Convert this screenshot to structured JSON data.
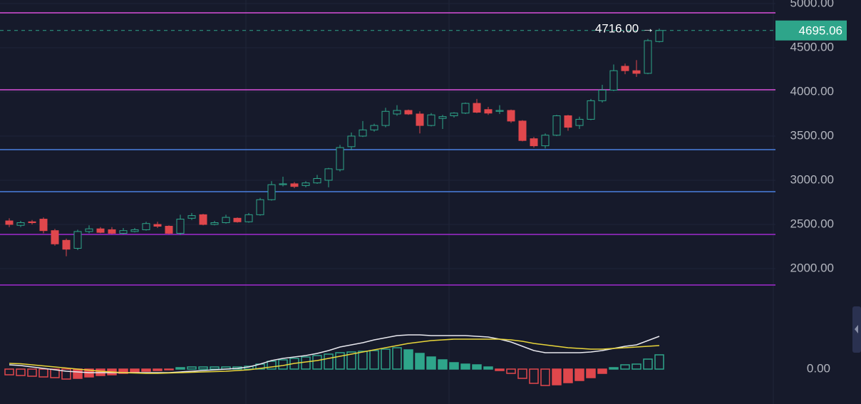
{
  "chart_data": [
    {
      "type": "candlestick",
      "up_color": "#2ea58a",
      "down_color": "#e0474c",
      "open": [
        2540,
        2490,
        2530,
        2560,
        2430,
        2320,
        2230,
        2420,
        2450,
        2440,
        2400,
        2420,
        2440,
        2500,
        2480,
        2400,
        2570,
        2610,
        2500,
        2520,
        2570,
        2530,
        2610,
        2780,
        2950,
        2960,
        2940,
        2970,
        3000,
        3120,
        3380,
        3500,
        3570,
        3620,
        3750,
        3790,
        3750,
        3620,
        3700,
        3730,
        3760,
        3870,
        3800,
        3780,
        3790,
        3670,
        3470,
        3390,
        3510,
        3730,
        3620,
        3690,
        3900,
        4020,
        4290,
        4240,
        4210,
        4570
      ],
      "high": [
        2570,
        2540,
        2550,
        2580,
        2450,
        2340,
        2440,
        2490,
        2470,
        2470,
        2460,
        2460,
        2530,
        2530,
        2490,
        2610,
        2630,
        2620,
        2540,
        2610,
        2580,
        2630,
        2800,
        2990,
        3040,
        2980,
        2990,
        3060,
        3140,
        3400,
        3540,
        3670,
        3640,
        3820,
        3850,
        3800,
        3780,
        3760,
        3740,
        3770,
        3880,
        3920,
        3830,
        3850,
        3800,
        3680,
        3490,
        3530,
        3740,
        3740,
        3720,
        3920,
        4080,
        4310,
        4320,
        4360,
        4600,
        4716
      ],
      "low": [
        2470,
        2470,
        2500,
        2400,
        2260,
        2140,
        2210,
        2400,
        2400,
        2390,
        2390,
        2410,
        2430,
        2460,
        2390,
        2380,
        2550,
        2490,
        2490,
        2510,
        2520,
        2520,
        2600,
        2770,
        2930,
        2910,
        2920,
        2960,
        2920,
        3100,
        3340,
        3490,
        3550,
        3600,
        3730,
        3740,
        3530,
        3610,
        3580,
        3710,
        3750,
        3760,
        3740,
        3750,
        3650,
        3440,
        3370,
        3360,
        3500,
        3560,
        3580,
        3680,
        3880,
        4010,
        4200,
        4170,
        4200,
        4560
      ],
      "close": [
        2500,
        2520,
        2520,
        2430,
        2280,
        2220,
        2420,
        2450,
        2410,
        2400,
        2430,
        2440,
        2510,
        2480,
        2400,
        2560,
        2600,
        2500,
        2520,
        2580,
        2530,
        2610,
        2780,
        2950,
        2960,
        2930,
        2970,
        3020,
        3130,
        3370,
        3500,
        3570,
        3620,
        3780,
        3790,
        3750,
        3620,
        3740,
        3720,
        3760,
        3870,
        3770,
        3760,
        3790,
        3670,
        3450,
        3390,
        3510,
        3730,
        3600,
        3690,
        3900,
        4020,
        4240,
        4240,
        4210,
        4580,
        4695.06
      ],
      "ylim": [
        1492,
        5040
      ],
      "yticks": [
        {
          "value": 5000,
          "label": "5000.00"
        },
        {
          "value": 4500,
          "label": "4500.00"
        },
        {
          "value": 4000,
          "label": "4000.00"
        },
        {
          "value": 3500,
          "label": "3500.00"
        },
        {
          "value": 3000,
          "label": "3000.00"
        },
        {
          "value": 2500,
          "label": "2500.00"
        },
        {
          "value": 2000,
          "label": "2000.00"
        }
      ],
      "hlines": [
        {
          "value": 4895,
          "color": "#d94fd9"
        },
        {
          "value": 4024,
          "color": "#d94fd9"
        },
        {
          "value": 3347,
          "color": "#4a7fe0"
        },
        {
          "value": 2871,
          "color": "#4a7fe0"
        },
        {
          "value": 2387,
          "color": "#a02ad0"
        },
        {
          "value": 1815,
          "color": "#a02ad0"
        }
      ],
      "last_price": 4695.06,
      "last_price_color": "#2ea58a",
      "annotation": {
        "text": "4716.00 →",
        "value": 4716
      }
    },
    {
      "type": "macd",
      "histogram": [
        -80,
        -90,
        -100,
        -110,
        -120,
        -140,
        -130,
        -110,
        -90,
        -80,
        -60,
        -40,
        -30,
        -20,
        -10,
        20,
        30,
        30,
        30,
        30,
        30,
        40,
        70,
        110,
        130,
        150,
        170,
        190,
        210,
        230,
        240,
        250,
        260,
        280,
        300,
        270,
        220,
        170,
        130,
        90,
        70,
        60,
        30,
        -20,
        -60,
        -130,
        -200,
        -230,
        -220,
        -190,
        -160,
        -120,
        -60,
        20,
        60,
        70,
        140,
        200
      ],
      "series": [
        {
          "color": "#e8e8ee",
          "values": [
            60,
            50,
            30,
            10,
            -10,
            -30,
            -40,
            -50,
            -50,
            -50,
            -50,
            -50,
            -50,
            -50,
            -50,
            -40,
            -30,
            -20,
            -10,
            0,
            10,
            30,
            70,
            120,
            150,
            170,
            190,
            220,
            260,
            310,
            340,
            370,
            410,
            440,
            470,
            480,
            480,
            470,
            470,
            470,
            470,
            460,
            450,
            420,
            380,
            320,
            260,
            230,
            230,
            230,
            230,
            240,
            260,
            290,
            320,
            340,
            400,
            460
          ]
        },
        {
          "color": "#e8d53a",
          "values": [
            80,
            75,
            60,
            45,
            30,
            15,
            0,
            -15,
            -30,
            -40,
            -50,
            -55,
            -60,
            -60,
            -55,
            -50,
            -45,
            -40,
            -35,
            -30,
            -20,
            -10,
            10,
            30,
            50,
            80,
            100,
            120,
            150,
            180,
            210,
            240,
            270,
            300,
            330,
            360,
            380,
            400,
            410,
            420,
            420,
            420,
            420,
            420,
            410,
            390,
            360,
            340,
            320,
            300,
            290,
            280,
            280,
            290,
            300,
            310,
            320,
            330
          ]
        }
      ],
      "ylim": [
        -490,
        780
      ],
      "yticks": [
        {
          "value": 0,
          "label": "0.00"
        }
      ]
    }
  ]
}
